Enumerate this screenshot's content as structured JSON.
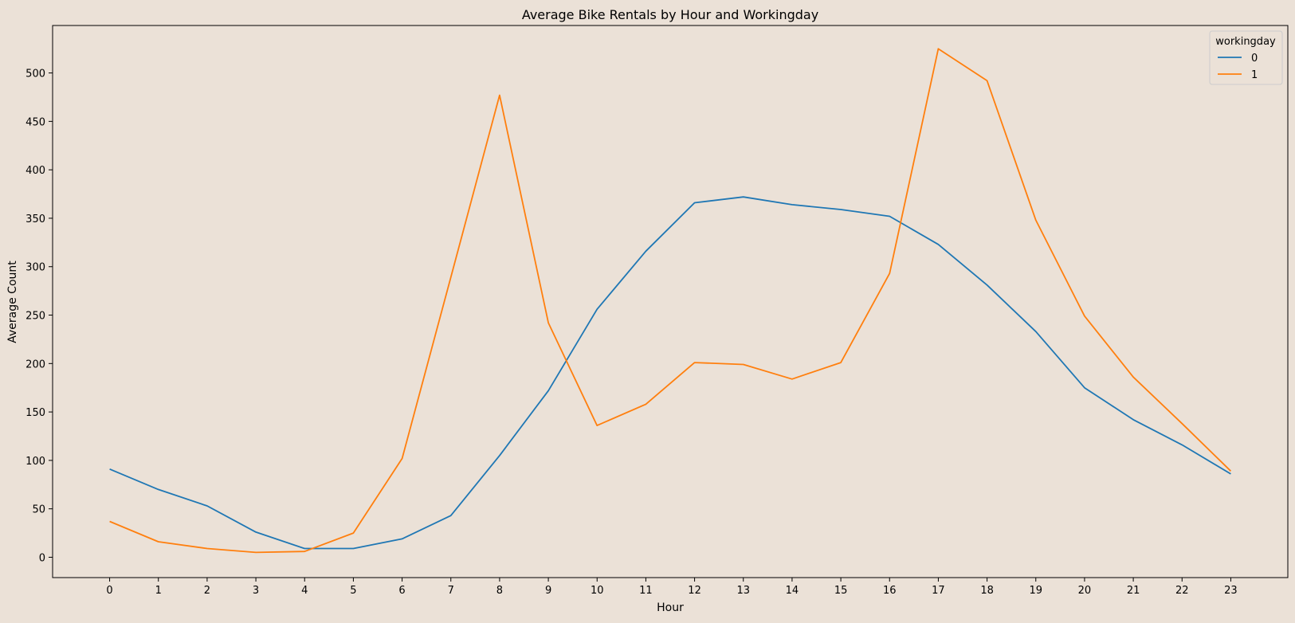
{
  "chart_data": {
    "type": "line",
    "title": "Average Bike Rentals by Hour and Workingday",
    "xlabel": "Hour",
    "ylabel": "Average Count",
    "x": [
      0,
      1,
      2,
      3,
      4,
      5,
      6,
      7,
      8,
      9,
      10,
      11,
      12,
      13,
      14,
      15,
      16,
      17,
      18,
      19,
      20,
      21,
      22,
      23
    ],
    "xlim": [
      -1.17,
      24.17
    ],
    "ylim": [
      -21,
      549
    ],
    "yticks": [
      0,
      50,
      100,
      150,
      200,
      250,
      300,
      350,
      400,
      450,
      500
    ],
    "grid": false,
    "legend": {
      "title": "workingday",
      "position": "top-right"
    },
    "series": [
      {
        "name": "0",
        "color": "#1f77b4",
        "values": [
          91,
          70,
          53,
          26,
          9,
          9,
          19,
          43,
          105,
          172,
          256,
          316,
          366,
          372,
          364,
          359,
          352,
          323,
          281,
          233,
          175,
          142,
          116,
          86
        ]
      },
      {
        "name": "1",
        "color": "#ff7f0e",
        "values": [
          37,
          16,
          9,
          5,
          6,
          25,
          102,
          289,
          477,
          242,
          136,
          158,
          201,
          199,
          184,
          201,
          293,
          525,
          492,
          348,
          249,
          186,
          138,
          89
        ]
      }
    ]
  }
}
